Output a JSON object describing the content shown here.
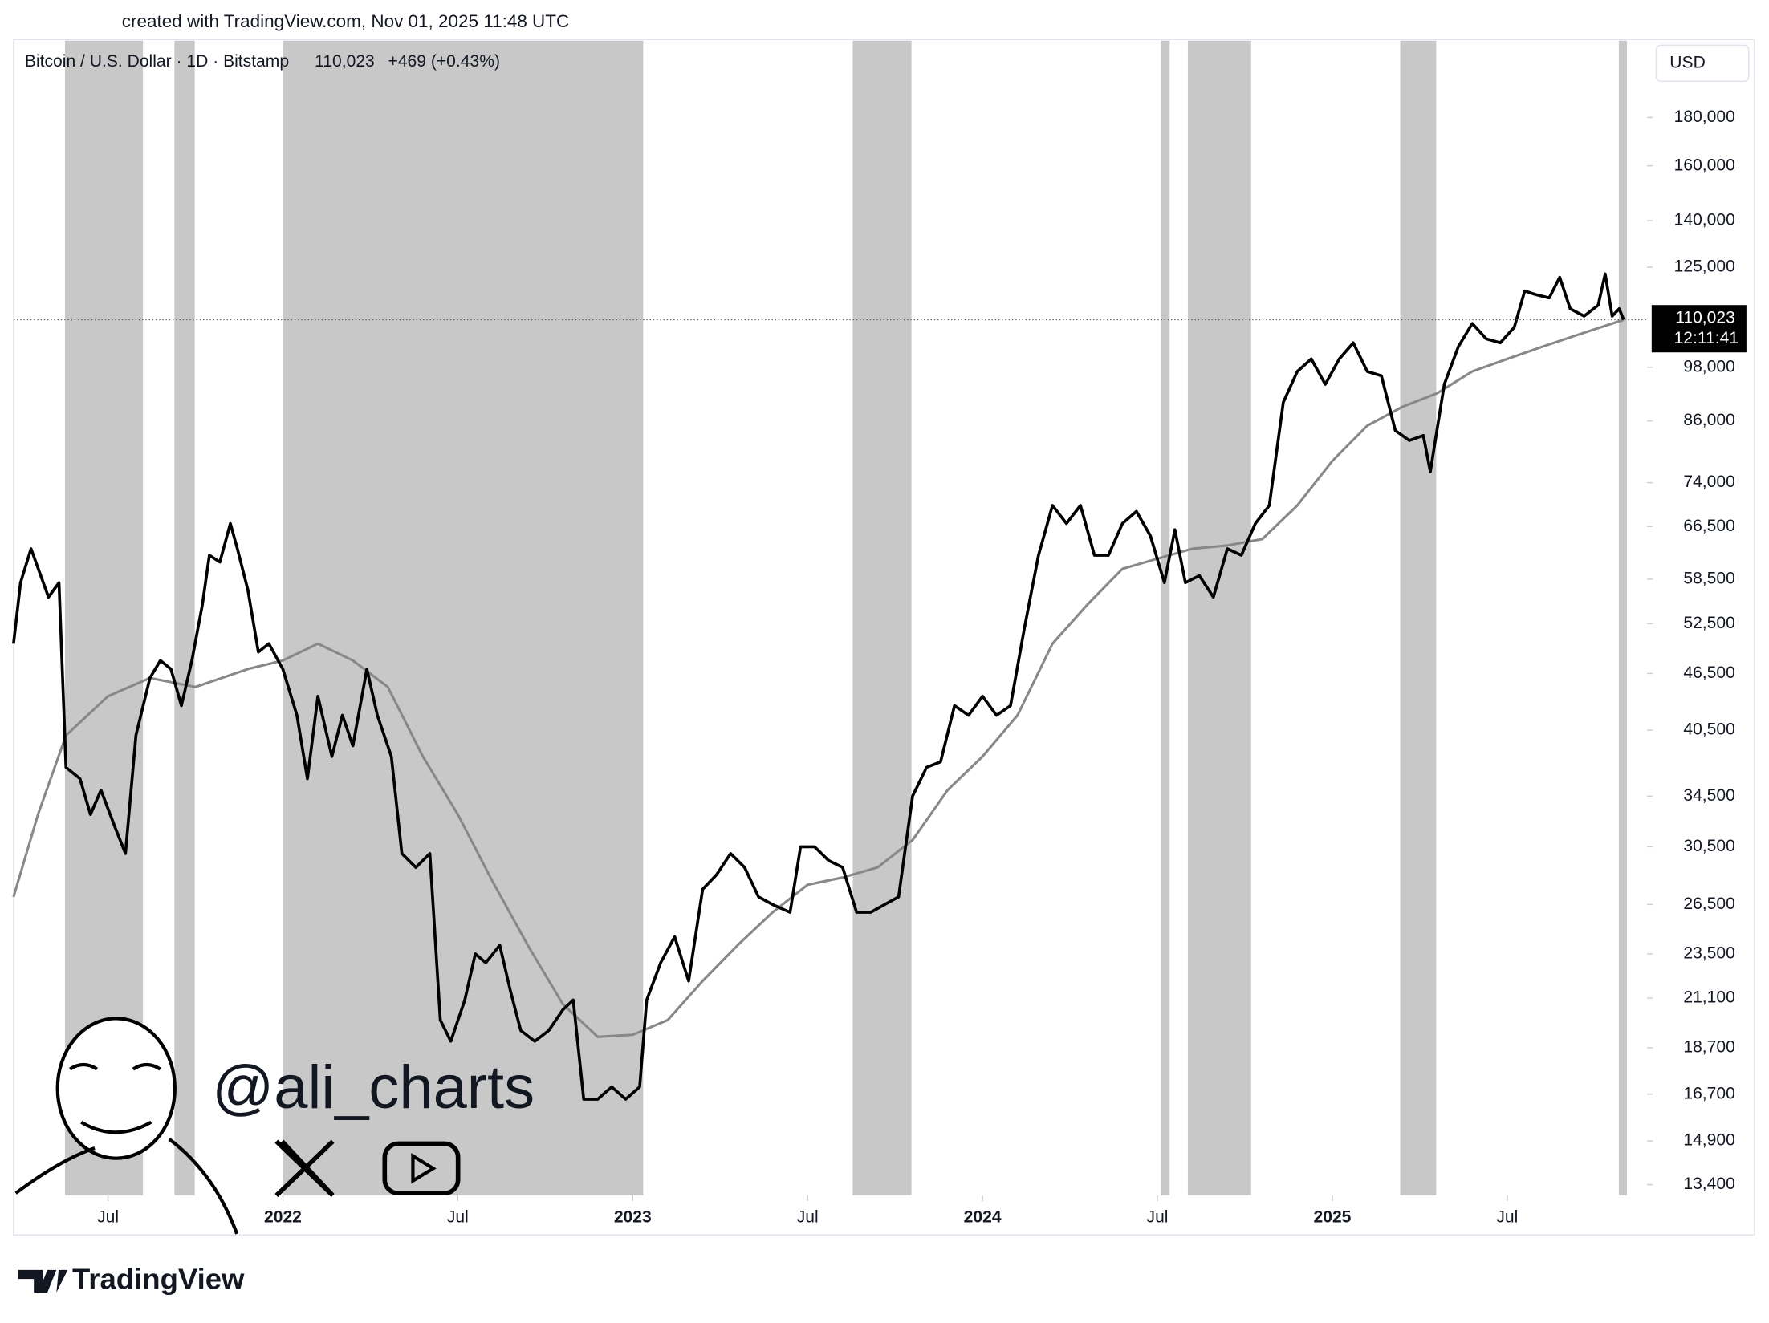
{
  "chart_data": {
    "type": "line",
    "credit": "created with TradingView.com, Nov 01, 2025 11:48 UTC",
    "title": "Bitcoin / U.S. Dollar · 1D · Bitstamp",
    "last_price_label": "110,023",
    "change": "+469 (+0.43%)",
    "currency": "USD",
    "countdown": "12:11:41",
    "watermark": "@ali_charts",
    "brand": "TradingView",
    "log_scale": true,
    "grid": false,
    "xlim": [
      2021.23,
      2025.9
    ],
    "ylim": [
      13050,
      217000
    ],
    "xticks": [
      {
        "value": 2021.5,
        "label": "Jul"
      },
      {
        "value": 2022,
        "label": "2022"
      },
      {
        "value": 2022.5,
        "label": "Jul"
      },
      {
        "value": 2023,
        "label": "2023"
      },
      {
        "value": 2023.5,
        "label": "Jul"
      },
      {
        "value": 2024,
        "label": "2024"
      },
      {
        "value": 2024.5,
        "label": "Jul"
      },
      {
        "value": 2025,
        "label": "2025"
      },
      {
        "value": 2025.5,
        "label": "Jul"
      }
    ],
    "yticks": [
      {
        "value": 13400,
        "label": "13,400"
      },
      {
        "value": 14900,
        "label": "14,900"
      },
      {
        "value": 16700,
        "label": "16,700"
      },
      {
        "value": 18700,
        "label": "18,700"
      },
      {
        "value": 21100,
        "label": "21,100"
      },
      {
        "value": 23500,
        "label": "23,500"
      },
      {
        "value": 26500,
        "label": "26,500"
      },
      {
        "value": 30500,
        "label": "30,500"
      },
      {
        "value": 34500,
        "label": "34,500"
      },
      {
        "value": 40500,
        "label": "40,500"
      },
      {
        "value": 46500,
        "label": "46,500"
      },
      {
        "value": 52500,
        "label": "52,500"
      },
      {
        "value": 58500,
        "label": "58,500"
      },
      {
        "value": 66500,
        "label": "66,500"
      },
      {
        "value": 74000,
        "label": "74,000"
      },
      {
        "value": 86000,
        "label": "86,000"
      },
      {
        "value": 98000,
        "label": "98,000"
      },
      {
        "value": 125000,
        "label": "125,000"
      },
      {
        "value": 140000,
        "label": "140,000"
      },
      {
        "value": 160000,
        "label": "160,000"
      },
      {
        "value": 180000,
        "label": "180,000"
      }
    ],
    "bands": [
      [
        2021.377,
        2021.6
      ],
      [
        2021.69,
        2021.748
      ],
      [
        2022.0,
        2023.03
      ],
      [
        2023.629,
        2023.797
      ],
      [
        2024.51,
        2024.535
      ],
      [
        2024.587,
        2024.768
      ],
      [
        2025.194,
        2025.297
      ],
      [
        2025.819,
        2025.842
      ]
    ],
    "band_color": "#c8c8c8",
    "series": [
      {
        "color": "#000000",
        "width": 2.6,
        "x": [
          2021.23,
          2021.25,
          2021.28,
          2021.33,
          2021.36,
          2021.38,
          2021.42,
          2021.45,
          2021.48,
          2021.52,
          2021.55,
          2021.58,
          2021.62,
          2021.65,
          2021.68,
          2021.71,
          2021.74,
          2021.77,
          2021.79,
          2021.82,
          2021.85,
          2021.87,
          2021.9,
          2021.93,
          2021.96,
          2022.0,
          2022.04,
          2022.07,
          2022.1,
          2022.14,
          2022.17,
          2022.2,
          2022.24,
          2022.27,
          2022.31,
          2022.34,
          2022.38,
          2022.42,
          2022.45,
          2022.48,
          2022.52,
          2022.55,
          2022.58,
          2022.62,
          2022.65,
          2022.68,
          2022.72,
          2022.76,
          2022.8,
          2022.83,
          2022.86,
          2022.9,
          2022.94,
          2022.98,
          2023.02,
          2023.04,
          2023.08,
          2023.12,
          2023.16,
          2023.2,
          2023.24,
          2023.28,
          2023.32,
          2023.36,
          2023.4,
          2023.45,
          2023.48,
          2023.52,
          2023.56,
          2023.6,
          2023.64,
          2023.68,
          2023.72,
          2023.76,
          2023.8,
          2023.84,
          2023.88,
          2023.92,
          2023.96,
          2024.0,
          2024.04,
          2024.08,
          2024.12,
          2024.16,
          2024.2,
          2024.24,
          2024.28,
          2024.32,
          2024.36,
          2024.4,
          2024.44,
          2024.48,
          2024.52,
          2024.55,
          2024.58,
          2024.62,
          2024.66,
          2024.7,
          2024.74,
          2024.78,
          2024.82,
          2024.86,
          2024.9,
          2024.94,
          2024.98,
          2025.02,
          2025.06,
          2025.1,
          2025.14,
          2025.18,
          2025.22,
          2025.26,
          2025.28,
          2025.32,
          2025.36,
          2025.4,
          2025.44,
          2025.48,
          2025.52,
          2025.55,
          2025.58,
          2025.62,
          2025.65,
          2025.68,
          2025.72,
          2025.76,
          2025.78,
          2025.8,
          2025.82,
          2025.833
        ],
        "values": [
          50000,
          58000,
          63000,
          56000,
          58000,
          37000,
          36000,
          33000,
          35000,
          32000,
          30000,
          40000,
          46000,
          48000,
          47000,
          43000,
          48000,
          55000,
          62000,
          61000,
          67000,
          63000,
          57000,
          49000,
          50000,
          47000,
          42000,
          36000,
          44000,
          38000,
          42000,
          39000,
          47000,
          42000,
          38000,
          30000,
          29000,
          30000,
          20000,
          19000,
          21000,
          23500,
          23000,
          24000,
          21500,
          19500,
          19000,
          19500,
          20500,
          21000,
          16500,
          16500,
          17000,
          16500,
          17000,
          21000,
          23000,
          24500,
          22000,
          27500,
          28500,
          30000,
          29000,
          27000,
          26500,
          26000,
          30500,
          30500,
          29500,
          29000,
          26000,
          26000,
          26500,
          27000,
          34500,
          37000,
          37500,
          43000,
          42000,
          44000,
          42000,
          43000,
          52000,
          62000,
          70000,
          67000,
          70000,
          62000,
          62000,
          67000,
          69000,
          65000,
          58000,
          66000,
          58000,
          59000,
          56000,
          63000,
          62000,
          67000,
          70000,
          90000,
          97000,
          100000,
          94000,
          100000,
          104000,
          97000,
          96000,
          84000,
          82000,
          83000,
          76000,
          94000,
          103000,
          109000,
          105000,
          104000,
          108000,
          118000,
          117000,
          116000,
          122000,
          113000,
          111000,
          114000,
          123000,
          111000,
          113000,
          110023
        ]
      },
      {
        "color": "#888888",
        "width": 2.2,
        "x": [
          2021.23,
          2021.3,
          2021.38,
          2021.5,
          2021.62,
          2021.75,
          2021.9,
          2022.0,
          2022.1,
          2022.2,
          2022.3,
          2022.4,
          2022.5,
          2022.6,
          2022.7,
          2022.8,
          2022.9,
          2023.0,
          2023.1,
          2023.2,
          2023.3,
          2023.4,
          2023.5,
          2023.6,
          2023.7,
          2023.8,
          2023.9,
          2024.0,
          2024.1,
          2024.2,
          2024.3,
          2024.4,
          2024.5,
          2024.6,
          2024.7,
          2024.8,
          2024.9,
          2025.0,
          2025.1,
          2025.2,
          2025.3,
          2025.4,
          2025.5,
          2025.6,
          2025.7,
          2025.8,
          2025.833
        ],
        "values": [
          27000,
          33000,
          40000,
          44000,
          46000,
          45000,
          47000,
          48000,
          50000,
          48000,
          45000,
          38000,
          33000,
          28000,
          24000,
          20800,
          19200,
          19300,
          20000,
          22000,
          24000,
          26000,
          27800,
          28300,
          29000,
          31000,
          35000,
          38000,
          42000,
          50000,
          55000,
          60000,
          61500,
          63000,
          63500,
          64500,
          70000,
          78000,
          85000,
          89000,
          92000,
          97000,
          100000,
          103000,
          106000,
          109000,
          110000
        ]
      }
    ]
  }
}
